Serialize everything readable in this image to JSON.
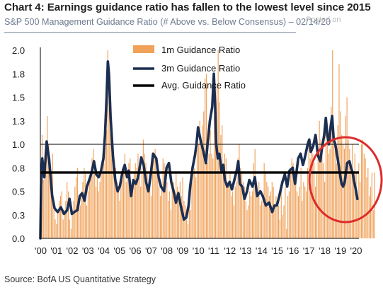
{
  "header": {
    "title": "Chart 4: Earnings guidance ratio has fallen to the lowest level since 2015",
    "subtitle": "S&P 500 Management Guidance Ratio (# Above vs. Below Consensus) – 02/14/20",
    "watermark": "Posted on"
  },
  "footer": {
    "source": "Source: BofA US Quantitative Strategy"
  },
  "colors": {
    "bars": "#f0a25a",
    "line_3m": "#1c2f52",
    "avg_line": "#000000",
    "highlight_circle": "#dd2c2c",
    "subtitle_underline": "#6d7b91"
  },
  "chart_data": {
    "type": "bar+line",
    "x_start": 2000.0,
    "x_end": 2020.2,
    "ylim": [
      0.0,
      2.0
    ],
    "y_ticks": [
      "2.0",
      "1.8",
      "1.5",
      "1.3",
      "1.0",
      "0.8",
      "0.5",
      "0.3",
      "0.0"
    ],
    "y_tick_values": [
      2.0,
      1.75,
      1.5,
      1.25,
      1.0,
      0.75,
      0.5,
      0.25,
      0.0
    ],
    "x_ticks": [
      "'00",
      "'01",
      "'02",
      "'03",
      "'04",
      "'05",
      "'06",
      "'07",
      "'08",
      "'09",
      "'10",
      "'11",
      "'12",
      "'13",
      "'14",
      "'15",
      "'16",
      "'17",
      "'18",
      "'19",
      "'20"
    ],
    "grid": false,
    "legend_position": "top-center",
    "series": [
      {
        "name": "1m Guidance Ratio",
        "type": "bar",
        "frequency": "monthly",
        "start": 2000.0,
        "values": [
          0.55,
          1.1,
          0.62,
          0.7,
          0.95,
          1.3,
          1.0,
          0.75,
          0.45,
          0.9,
          0.3,
          0.2,
          0.15,
          0.3,
          0.4,
          0.45,
          0.5,
          0.2,
          0.3,
          0.4,
          0.6,
          0.5,
          0.2,
          0.1,
          0.3,
          0.4,
          0.55,
          0.65,
          0.75,
          0.45,
          0.35,
          0.5,
          0.6,
          0.75,
          0.7,
          0.35,
          0.5,
          0.6,
          0.65,
          0.85,
          0.95,
          0.7,
          0.55,
          0.65,
          0.5,
          0.6,
          0.75,
          0.7,
          0.8,
          1.0,
          1.15,
          2.0,
          1.6,
          1.3,
          1.1,
          0.9,
          0.7,
          0.75,
          0.6,
          0.55,
          0.4,
          0.6,
          0.75,
          0.7,
          0.9,
          0.6,
          0.65,
          0.8,
          0.85,
          0.55,
          0.6,
          0.7,
          0.8,
          0.75,
          0.9,
          0.65,
          0.55,
          0.75,
          1.05,
          0.9,
          0.8,
          0.7,
          0.5,
          0.55,
          0.45,
          0.8,
          0.9,
          0.95,
          0.7,
          0.65,
          0.55,
          0.45,
          0.55,
          0.85,
          0.8,
          0.5,
          0.6,
          0.4,
          0.5,
          0.3,
          0.55,
          0.6,
          0.45,
          0.7,
          0.55,
          0.5,
          0.6,
          0.45,
          0.65,
          0.4,
          0.35,
          0.2,
          0.15,
          0.5,
          0.3,
          0.6,
          0.7,
          0.75,
          0.65,
          0.95,
          1.0,
          1.25,
          1.05,
          1.2,
          1.35,
          1.7,
          1.75,
          0.8,
          0.9,
          1.15,
          0.9,
          0.85,
          1.3,
          1.45,
          1.6,
          2.0,
          1.45,
          1.1,
          1.2,
          0.8,
          0.9,
          0.85,
          0.6,
          0.55,
          0.7,
          0.45,
          0.5,
          0.35,
          0.55,
          0.6,
          0.85,
          1.0,
          0.75,
          0.7,
          0.6,
          0.55,
          0.4,
          0.3,
          0.35,
          0.5,
          0.45,
          0.5,
          0.8,
          0.95,
          0.55,
          0.45,
          0.6,
          0.35,
          0.4,
          0.45,
          0.8,
          0.7,
          0.6,
          0.55,
          0.45,
          0.5,
          0.6,
          0.55,
          0.3,
          0.45,
          0.4,
          0.35,
          0.2,
          0.5,
          0.25,
          0.35,
          0.55,
          0.1,
          0.45,
          0.5,
          0.75,
          0.85,
          0.8,
          0.7,
          0.65,
          0.5,
          0.45,
          0.55,
          0.75,
          0.4,
          0.6,
          0.55,
          0.5,
          0.75,
          1.0,
          0.85,
          0.95,
          0.9,
          0.8,
          0.55,
          0.7,
          0.85,
          1.25,
          1.05,
          0.9,
          0.8,
          0.6,
          1.2,
          1.1,
          0.9,
          0.95,
          1.4,
          2.0,
          1.0,
          0.95,
          0.8,
          1.2,
          1.85,
          1.35,
          1.1,
          1.0,
          0.95,
          1.3,
          1.5,
          1.05,
          0.95,
          0.8,
          1.0,
          0.6,
          0.9,
          0.7,
          0.45,
          0.8,
          0.6,
          1.0,
          1.05,
          0.9,
          0.85,
          0.65,
          0.75,
          0.45,
          0.55,
          0.7,
          0.3,
          0.7
        ]
      },
      {
        "name": "3m Guidance Ratio",
        "type": "line",
        "points": [
          [
            2000.0,
            0.0
          ],
          [
            2000.05,
            0.55
          ],
          [
            2000.12,
            0.85
          ],
          [
            2000.25,
            0.65
          ],
          [
            2000.4,
            1.03
          ],
          [
            2000.55,
            0.85
          ],
          [
            2000.75,
            0.45
          ],
          [
            2000.9,
            0.32
          ],
          [
            2001.1,
            0.28
          ],
          [
            2001.3,
            0.33
          ],
          [
            2001.5,
            0.26
          ],
          [
            2001.7,
            0.3
          ],
          [
            2001.85,
            0.42
          ],
          [
            2002.0,
            0.26
          ],
          [
            2002.15,
            0.28
          ],
          [
            2002.35,
            0.3
          ],
          [
            2002.5,
            0.45
          ],
          [
            2002.65,
            0.48
          ],
          [
            2002.8,
            0.4
          ],
          [
            2002.95,
            0.55
          ],
          [
            2003.1,
            0.62
          ],
          [
            2003.25,
            0.7
          ],
          [
            2003.4,
            0.82
          ],
          [
            2003.55,
            0.68
          ],
          [
            2003.7,
            0.65
          ],
          [
            2003.85,
            0.72
          ],
          [
            2004.0,
            0.85
          ],
          [
            2004.1,
            1.1
          ],
          [
            2004.2,
            1.5
          ],
          [
            2004.28,
            1.88
          ],
          [
            2004.35,
            1.75
          ],
          [
            2004.45,
            1.3
          ],
          [
            2004.6,
            0.88
          ],
          [
            2004.75,
            0.62
          ],
          [
            2004.9,
            0.5
          ],
          [
            2005.05,
            0.56
          ],
          [
            2005.2,
            0.7
          ],
          [
            2005.35,
            0.78
          ],
          [
            2005.5,
            0.65
          ],
          [
            2005.6,
            0.72
          ],
          [
            2005.75,
            0.45
          ],
          [
            2005.9,
            0.62
          ],
          [
            2006.05,
            0.58
          ],
          [
            2006.2,
            0.65
          ],
          [
            2006.4,
            0.86
          ],
          [
            2006.55,
            0.78
          ],
          [
            2006.7,
            0.6
          ],
          [
            2006.85,
            0.5
          ],
          [
            2007.0,
            0.68
          ],
          [
            2007.15,
            0.9
          ],
          [
            2007.35,
            0.85
          ],
          [
            2007.5,
            0.65
          ],
          [
            2007.65,
            0.55
          ],
          [
            2007.85,
            0.5
          ],
          [
            2008.0,
            0.75
          ],
          [
            2008.15,
            0.8
          ],
          [
            2008.3,
            0.6
          ],
          [
            2008.45,
            0.5
          ],
          [
            2008.6,
            0.38
          ],
          [
            2008.75,
            0.48
          ],
          [
            2008.9,
            0.35
          ],
          [
            2009.1,
            0.2
          ],
          [
            2009.25,
            0.22
          ],
          [
            2009.4,
            0.35
          ],
          [
            2009.5,
            0.55
          ],
          [
            2009.65,
            0.75
          ],
          [
            2009.8,
            0.88
          ],
          [
            2009.9,
            1.0
          ],
          [
            2010.0,
            1.18
          ],
          [
            2010.15,
            1.05
          ],
          [
            2010.3,
            0.95
          ],
          [
            2010.5,
            0.8
          ],
          [
            2010.6,
            1.0
          ],
          [
            2010.75,
            1.25
          ],
          [
            2010.9,
            1.4
          ],
          [
            2011.0,
            1.75
          ],
          [
            2011.08,
            1.42
          ],
          [
            2011.15,
            1.0
          ],
          [
            2011.25,
            0.85
          ],
          [
            2011.35,
            0.9
          ],
          [
            2011.5,
            0.7
          ],
          [
            2011.6,
            0.78
          ],
          [
            2011.7,
            0.62
          ],
          [
            2011.85,
            0.55
          ],
          [
            2012.0,
            0.6
          ],
          [
            2012.15,
            0.52
          ],
          [
            2012.3,
            0.62
          ],
          [
            2012.45,
            0.72
          ],
          [
            2012.55,
            0.82
          ],
          [
            2012.65,
            0.58
          ],
          [
            2012.8,
            0.55
          ],
          [
            2012.95,
            0.42
          ],
          [
            2013.1,
            0.5
          ],
          [
            2013.25,
            0.62
          ],
          [
            2013.45,
            0.55
          ],
          [
            2013.6,
            0.65
          ],
          [
            2013.75,
            0.45
          ],
          [
            2013.95,
            0.5
          ],
          [
            2014.1,
            0.45
          ],
          [
            2014.3,
            0.35
          ],
          [
            2014.5,
            0.38
          ],
          [
            2014.7,
            0.28
          ],
          [
            2014.85,
            0.35
          ],
          [
            2015.0,
            0.35
          ],
          [
            2015.15,
            0.45
          ],
          [
            2015.35,
            0.6
          ],
          [
            2015.5,
            0.68
          ],
          [
            2015.65,
            0.55
          ],
          [
            2015.8,
            0.72
          ],
          [
            2016.0,
            0.75
          ],
          [
            2016.15,
            0.58
          ],
          [
            2016.35,
            0.85
          ],
          [
            2016.5,
            0.9
          ],
          [
            2016.65,
            0.78
          ],
          [
            2016.8,
            0.88
          ],
          [
            2016.95,
            1.0
          ],
          [
            2017.05,
            1.05
          ],
          [
            2017.15,
            0.92
          ],
          [
            2017.3,
            0.98
          ],
          [
            2017.45,
            1.1
          ],
          [
            2017.6,
            0.88
          ],
          [
            2017.75,
            0.82
          ],
          [
            2017.85,
            0.95
          ],
          [
            2018.0,
            1.1
          ],
          [
            2018.1,
            1.28
          ],
          [
            2018.2,
            1.1
          ],
          [
            2018.3,
            1.0
          ],
          [
            2018.4,
            1.18
          ],
          [
            2018.5,
            1.3
          ],
          [
            2018.6,
            1.05
          ],
          [
            2018.7,
            1.0
          ],
          [
            2018.85,
            0.85
          ],
          [
            2019.0,
            0.68
          ],
          [
            2019.1,
            0.58
          ],
          [
            2019.2,
            0.55
          ],
          [
            2019.3,
            0.6
          ],
          [
            2019.45,
            0.8
          ],
          [
            2019.6,
            0.82
          ],
          [
            2019.7,
            0.75
          ],
          [
            2019.8,
            0.7
          ],
          [
            2019.9,
            0.6
          ],
          [
            2020.0,
            0.52
          ],
          [
            2020.1,
            0.42
          ]
        ]
      },
      {
        "name": "Avg. Guidance Ratio",
        "type": "hline",
        "value": 0.7
      }
    ]
  }
}
